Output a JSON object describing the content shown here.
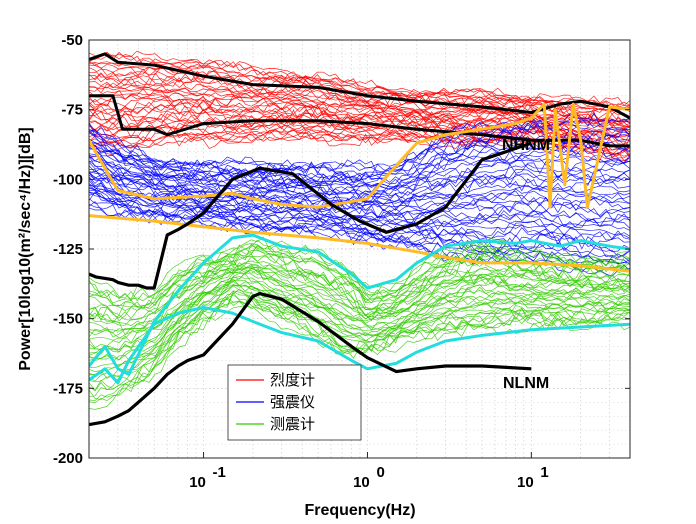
{
  "chart_data": {
    "type": "line",
    "xlabel": "Frequency(Hz)",
    "ylabel": "Power[10log10(m²/sec⁴/Hz)][dB]",
    "x_scale": "log",
    "xlim": [
      0.02,
      40
    ],
    "ylim": [
      -200,
      -50
    ],
    "grid": true,
    "y_ticks": [
      -50,
      -75,
      -100,
      -125,
      -150,
      -175,
      -200
    ],
    "x_ticks": [
      {
        "value": 0.1,
        "base": "10",
        "exp": "-1"
      },
      {
        "value": 1,
        "base": "10",
        "exp": "0"
      },
      {
        "value": 10,
        "base": "10",
        "exp": "1"
      }
    ],
    "legend": {
      "placement": "lower-left",
      "entries": [
        {
          "label": "烈度计",
          "color": "#ff0000"
        },
        {
          "label": "强震仪",
          "color": "#0000ff"
        },
        {
          "label": "测震计",
          "color": "#33cc00"
        }
      ]
    },
    "annotations": [
      {
        "text": "NLNM",
        "x": 10.5,
        "y": -171
      },
      {
        "text": "NHNM",
        "x": 9.0,
        "y": -85
      }
    ],
    "reference_models": [
      {
        "name": "NHNM",
        "color": "#000000",
        "x": [
          0.02,
          0.022,
          0.028,
          0.03,
          0.035,
          0.04,
          0.045,
          0.05,
          0.06,
          0.07,
          0.08,
          0.1,
          0.15,
          0.2,
          0.22,
          0.35,
          0.6,
          0.9,
          1.3,
          2.0,
          3.0,
          5.0,
          10.0
        ],
        "y": [
          -134,
          -135,
          -136,
          -137,
          -138,
          -138,
          -139,
          -139,
          -120,
          -118,
          -116,
          -112,
          -100,
          -97,
          -96,
          -98,
          -109,
          -115,
          -119,
          -116,
          -110,
          -93,
          -87
        ]
      },
      {
        "name": "NLNM",
        "color": "#000000",
        "x": [
          0.02,
          0.025,
          0.03,
          0.035,
          0.04,
          0.05,
          0.06,
          0.07,
          0.08,
          0.1,
          0.15,
          0.2,
          0.22,
          0.3,
          0.5,
          0.8,
          1.0,
          1.5,
          2.0,
          3.0,
          5.0,
          10.0
        ],
        "y": [
          -188,
          -187,
          -185,
          -183,
          -180,
          -175,
          -170,
          -167,
          -165,
          -163,
          -152,
          -142,
          -141,
          -143,
          -151,
          -160,
          -164,
          -169,
          -168,
          -167,
          -167,
          -168
        ]
      }
    ],
    "series": [
      {
        "name": "烈度计",
        "color": "#ff0000",
        "kind": "band",
        "count": 42,
        "x": [
          0.02,
          0.05,
          0.1,
          0.2,
          0.5,
          1,
          2,
          5,
          10,
          20,
          40
        ],
        "upper": [
          -55,
          -56,
          -57,
          -60,
          -62,
          -66,
          -68,
          -68,
          -70,
          -72,
          -72
        ],
        "lower": [
          -90,
          -88,
          -87,
          -86,
          -86,
          -86,
          -87,
          -87,
          -88,
          -90,
          -94
        ]
      },
      {
        "name": "强震仪",
        "color": "#0000ff",
        "kind": "band",
        "count": 48,
        "x": [
          0.02,
          0.03,
          0.05,
          0.1,
          0.2,
          0.5,
          1,
          1.5,
          2,
          3,
          5,
          10,
          20,
          40
        ],
        "upper": [
          -80,
          -87,
          -92,
          -94,
          -94,
          -95,
          -95,
          -94,
          -90,
          -84,
          -80,
          -78,
          -78,
          -78
        ],
        "lower": [
          -110,
          -112,
          -114,
          -116,
          -118,
          -120,
          -122,
          -124,
          -126,
          -128,
          -130,
          -130,
          -132,
          -134
        ]
      },
      {
        "name": "测震计",
        "color": "#33cc00",
        "kind": "band",
        "count": 40,
        "x": [
          0.02,
          0.03,
          0.05,
          0.07,
          0.1,
          0.15,
          0.2,
          0.3,
          0.5,
          0.8,
          1,
          1.5,
          2,
          3,
          5,
          10,
          20,
          40
        ],
        "upper": [
          -135,
          -140,
          -140,
          -132,
          -128,
          -125,
          -122,
          -124,
          -126,
          -132,
          -140,
          -138,
          -132,
          -126,
          -122,
          -126,
          -128,
          -128
        ],
        "lower": [
          -182,
          -178,
          -170,
          -160,
          -152,
          -144,
          -146,
          -152,
          -158,
          -164,
          -162,
          -160,
          -158,
          -155,
          -154,
          -153,
          -152,
          -152
        ]
      }
    ],
    "bounds": [
      {
        "name": "red-lower-bound",
        "color": "#000000",
        "x": [
          0.02,
          0.028,
          0.032,
          0.05,
          0.06,
          0.1,
          0.2,
          0.5,
          1,
          2,
          5,
          10,
          20,
          30,
          40
        ],
        "y": [
          -70,
          -70,
          -82,
          -82,
          -84,
          -80,
          -79,
          -79,
          -80,
          -82,
          -84,
          -86,
          -86,
          -88,
          -88
        ]
      },
      {
        "name": "red-upper-bound",
        "color": "#000000",
        "x": [
          0.02,
          0.025,
          0.03,
          0.05,
          0.1,
          0.2,
          0.5,
          1,
          2,
          5,
          10,
          15,
          20,
          30,
          40
        ],
        "y": [
          -57,
          -55,
          -58,
          -59,
          -63,
          -66,
          -67,
          -70,
          -72,
          -74,
          -76,
          -73,
          -72,
          -74,
          -78
        ]
      },
      {
        "name": "blue-upper-bound",
        "color": "#ffbb22",
        "x": [
          0.02,
          0.025,
          0.03,
          0.05,
          0.1,
          0.15,
          0.2,
          0.3,
          0.5,
          1,
          1.5,
          2,
          3,
          5,
          8,
          10,
          12,
          13,
          14,
          16,
          18,
          20,
          22,
          30,
          40
        ],
        "y": [
          -86,
          -96,
          -104,
          -107,
          -106,
          -105,
          -107,
          -109,
          -110,
          -107,
          -95,
          -87,
          -84,
          -82,
          -80,
          -78,
          -73,
          -110,
          -75,
          -102,
          -73,
          -86,
          -110,
          -74,
          -75
        ]
      },
      {
        "name": "blue-lower-bound",
        "color": "#ffbb22",
        "x": [
          0.02,
          0.05,
          0.1,
          0.2,
          0.5,
          1,
          2,
          3,
          5,
          10,
          20,
          40
        ],
        "y": [
          -113,
          -115,
          -117,
          -119,
          -121,
          -123,
          -126,
          -128,
          -130,
          -130,
          -131,
          -133
        ]
      },
      {
        "name": "green-upper-bound",
        "color": "#22dddd",
        "x": [
          0.02,
          0.025,
          0.03,
          0.035,
          0.05,
          0.07,
          0.1,
          0.15,
          0.2,
          0.3,
          0.5,
          0.8,
          1,
          1.5,
          2,
          3,
          5,
          8,
          10,
          15,
          20,
          30,
          40
        ],
        "y": [
          -167,
          -160,
          -168,
          -170,
          -151,
          -140,
          -130,
          -121,
          -120,
          -124,
          -126,
          -134,
          -139,
          -136,
          -130,
          -124,
          -122,
          -123,
          -122,
          -124,
          -122,
          -124,
          -125
        ]
      },
      {
        "name": "green-lower-bound",
        "color": "#22dddd",
        "x": [
          0.02,
          0.025,
          0.03,
          0.035,
          0.05,
          0.07,
          0.1,
          0.15,
          0.2,
          0.3,
          0.5,
          0.8,
          1,
          1.5,
          2,
          3,
          5,
          10,
          20,
          40
        ],
        "y": [
          -172,
          -168,
          -173,
          -165,
          -152,
          -148,
          -146,
          -148,
          -151,
          -155,
          -158,
          -165,
          -168,
          -166,
          -162,
          -158,
          -156,
          -154,
          -153,
          -152
        ]
      }
    ]
  }
}
